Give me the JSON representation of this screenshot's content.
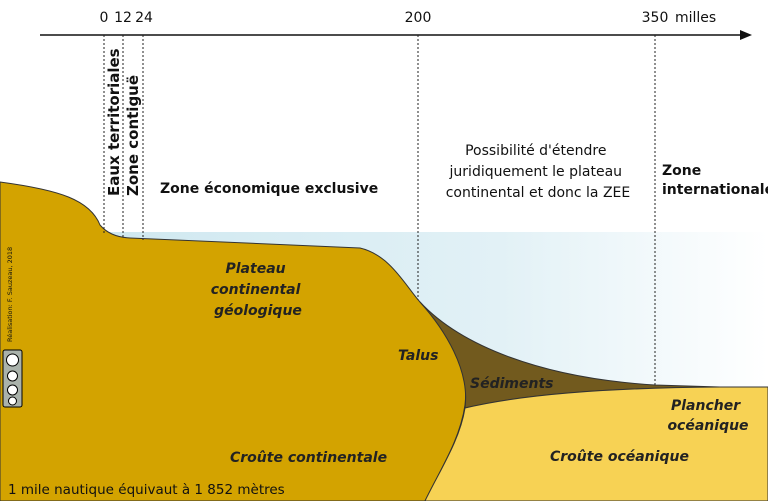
{
  "axis": {
    "ticks": [
      "0",
      "12",
      "24",
      "200",
      "350"
    ],
    "unit": "milles"
  },
  "zones": {
    "territorial": "Eaux territoriales",
    "contiguous": "Zone contiguë",
    "eez": "Zone économique exclusive",
    "extension": [
      "Possibilité d'étendre",
      "juridiquement le plateau",
      "continental et donc la ZEE"
    ],
    "international": [
      "Zone",
      "internationale"
    ]
  },
  "layers": {
    "shelf": [
      "Plateau",
      "continental",
      "géologique"
    ],
    "slope": "Talus",
    "sediments": "Sédiments",
    "floor": [
      "Plancher",
      "océanique"
    ],
    "continental_crust": "Croûte continentale",
    "oceanic_crust": "Croûte océanique"
  },
  "note": "1 mile nautique équivaut à 1 852 mètres",
  "credit": "Réalisation: F. Sauzeau, 2018"
}
